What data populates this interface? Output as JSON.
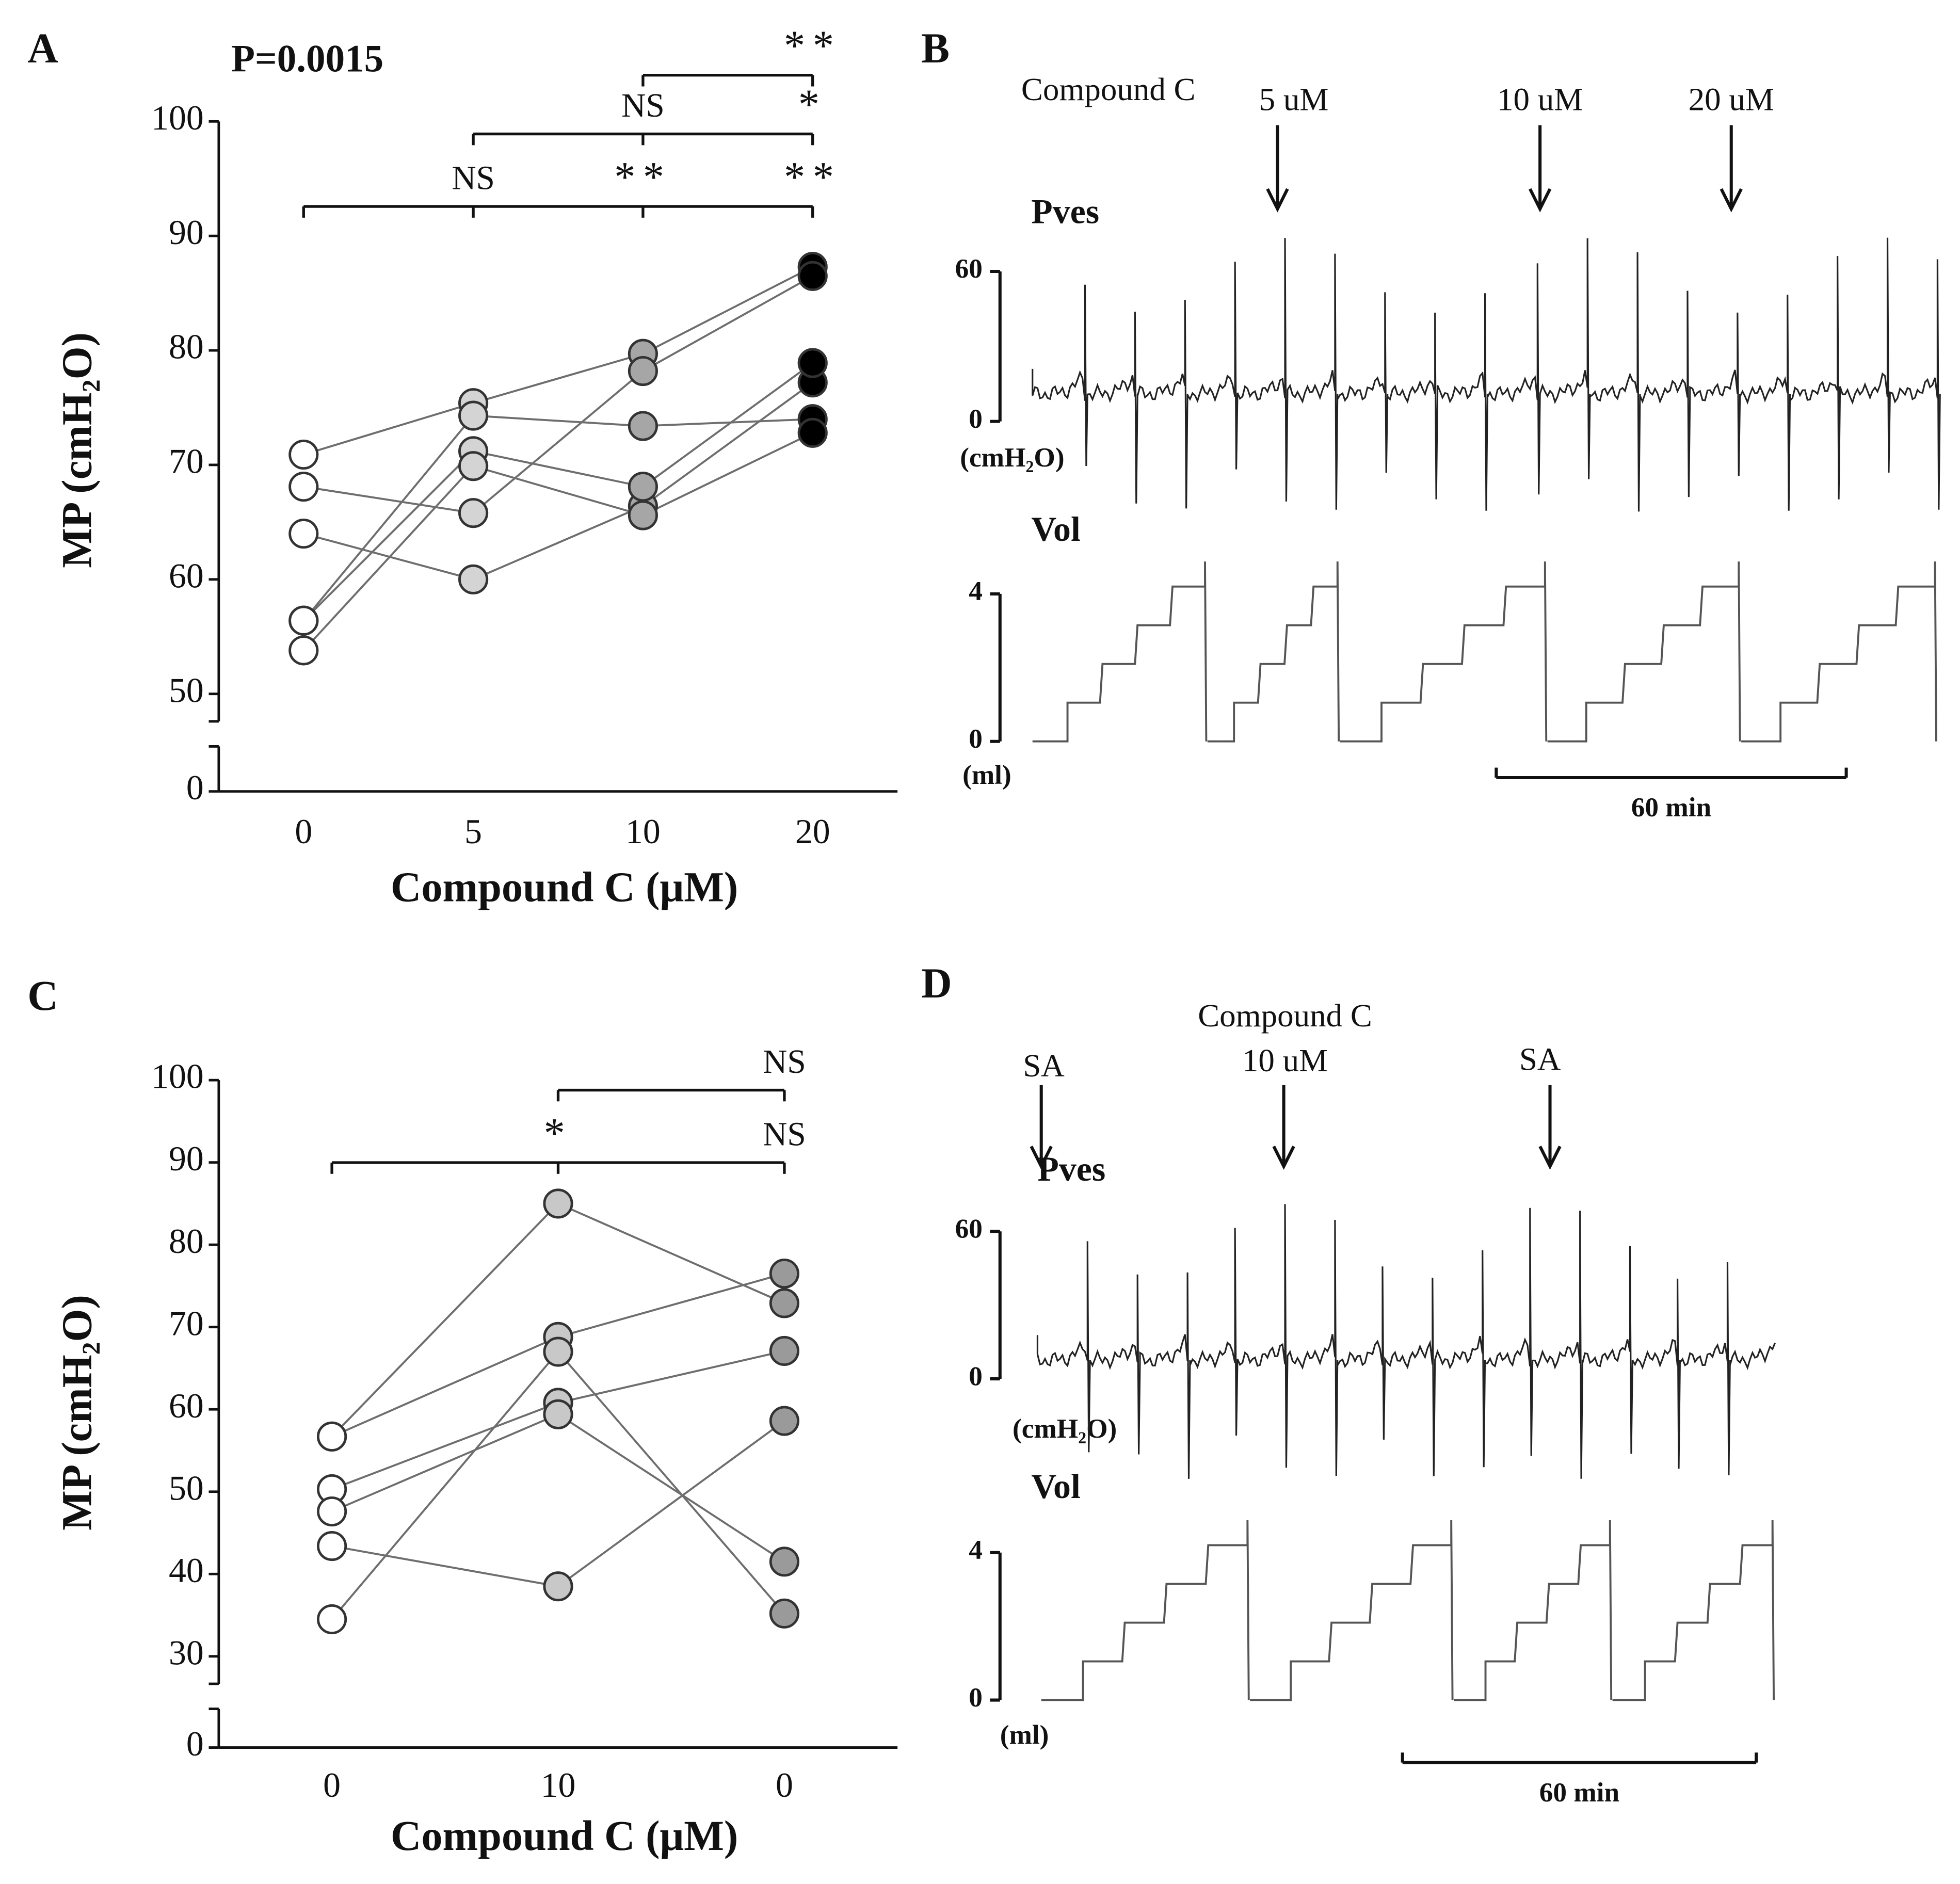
{
  "chart_data": [
    {
      "type": "line",
      "label": "A",
      "annotation": "P=0.0015",
      "xlabel": "Compound C (μM)",
      "ylabel": "MP (cmH₂O)",
      "categories": [
        "0",
        "5",
        "10",
        "20"
      ],
      "marker_colors": [
        "#ffffff",
        "#d4d4d4",
        "#a6a6a6",
        "#000000"
      ],
      "line_color": "#6e6e6e",
      "ylim": [
        0,
        100
      ],
      "ybreak": [
        0,
        50
      ],
      "yticks": [
        0,
        50,
        60,
        70,
        80,
        90,
        100
      ],
      "series": [
        {
          "values": [
            70.9,
            75.4,
            79.7,
            87.3
          ]
        },
        {
          "values": [
            68.1,
            65.8,
            78.2,
            86.5
          ]
        },
        {
          "values": [
            64.0,
            60.0,
            66.4,
            77.2
          ]
        },
        {
          "values": [
            56.4,
            74.3,
            73.4,
            74.0
          ]
        },
        {
          "values": [
            56.4,
            71.2,
            68.1,
            78.9
          ]
        },
        {
          "values": [
            53.8,
            69.9,
            65.6,
            72.8
          ]
        }
      ],
      "brackets": [
        {
          "span": [
            0,
            3
          ],
          "labels": [
            null,
            "NS",
            "**",
            "**"
          ]
        },
        {
          "span": [
            1,
            3
          ],
          "labels": [
            null,
            null,
            "NS",
            "*"
          ]
        },
        {
          "span": [
            2,
            3
          ],
          "labels": [
            null,
            null,
            null,
            "**"
          ]
        }
      ]
    },
    {
      "type": "line",
      "label": "C",
      "xlabel": "Compound C (μM)",
      "ylabel": "MP (cmH₂O)",
      "categories": [
        "0",
        "10",
        "0"
      ],
      "marker_colors": [
        "#ffffff",
        "#c8c8c8",
        "#9a9a9a"
      ],
      "line_color": "#6e6e6e",
      "ylim": [
        0,
        100
      ],
      "ybreak": [
        0,
        30
      ],
      "yticks": [
        0,
        30,
        40,
        50,
        60,
        70,
        80,
        90,
        100
      ],
      "series": [
        {
          "values": [
            56.7,
            85.0,
            72.9
          ]
        },
        {
          "values": [
            56.7,
            68.8,
            76.5
          ]
        },
        {
          "values": [
            50.3,
            60.8,
            67.1
          ]
        },
        {
          "values": [
            47.6,
            59.4,
            41.5
          ]
        },
        {
          "values": [
            43.4,
            38.5,
            58.6
          ]
        },
        {
          "values": [
            34.5,
            67.0,
            35.2
          ]
        }
      ],
      "brackets": [
        {
          "span": [
            0,
            2
          ],
          "labels": [
            null,
            "*",
            "NS"
          ]
        },
        {
          "span": [
            1,
            2
          ],
          "labels": [
            null,
            null,
            "NS"
          ]
        }
      ]
    }
  ],
  "panels": [
    {
      "label": "B",
      "drug": "Compound C",
      "events": [
        [
          "5 uM"
        ],
        [
          "10 uM"
        ],
        [
          "20 uM"
        ]
      ],
      "pressure": "Pves",
      "pressure_ticks": [
        60,
        0
      ],
      "pressure_unit": "(cmH₂O)",
      "volume": "Vol",
      "volume_ticks": [
        4,
        0
      ],
      "volume_unit": "(ml)",
      "scale_bar": "60 min"
    },
    {
      "label": "D",
      "events": [
        [
          "SA"
        ],
        [
          "Compound C",
          "10 uM"
        ],
        [
          "SA"
        ]
      ],
      "pressure": "Pves",
      "pressure_ticks": [
        60,
        0
      ],
      "pressure_unit": "(cmH₂O)",
      "volume": "Vol",
      "volume_ticks": [
        4,
        0
      ],
      "volume_unit": "(ml)",
      "scale_bar": "60 min"
    }
  ]
}
